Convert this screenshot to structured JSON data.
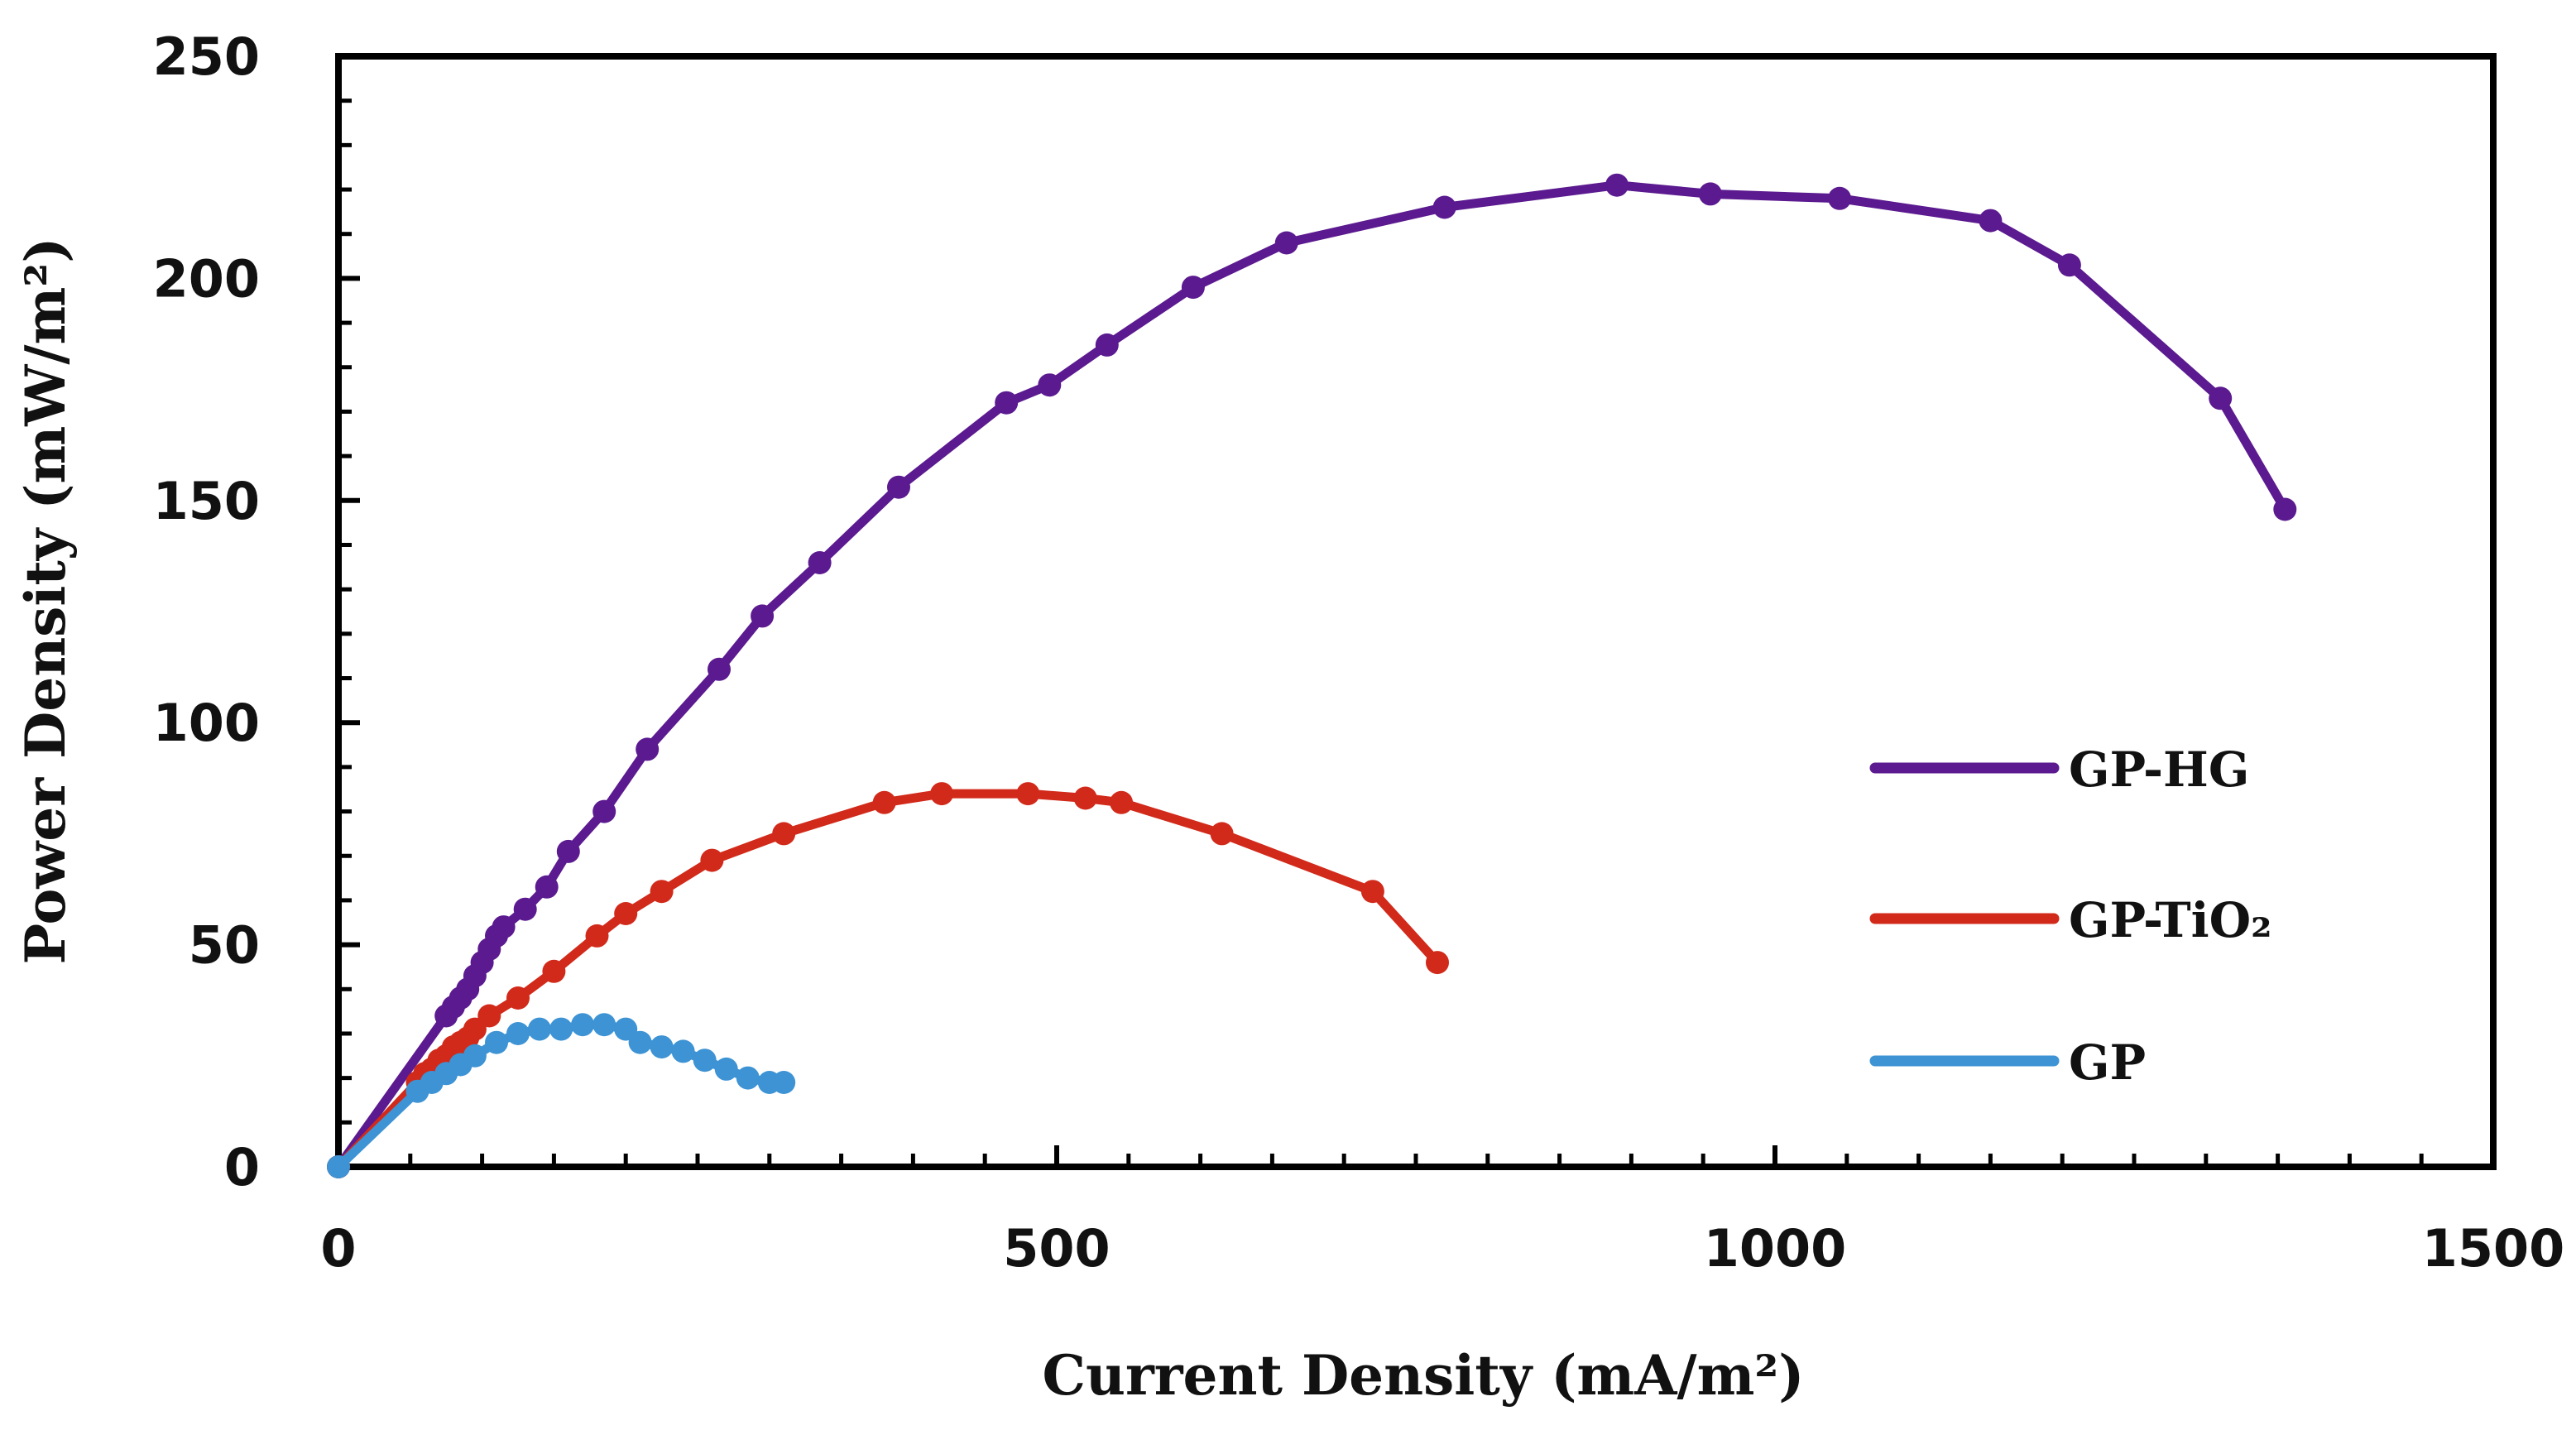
{
  "chart_data": {
    "type": "line",
    "xlabel": "Current Density (mA/m²)",
    "ylabel": "Power Density (mW/m²)",
    "xlim": [
      0,
      1500
    ],
    "ylim": [
      0,
      250
    ],
    "x_ticks": [
      "0",
      "500",
      "1000",
      "1500"
    ],
    "y_ticks": [
      "0",
      "50",
      "100",
      "150",
      "200",
      "250"
    ],
    "legend_position": "right",
    "grid": false,
    "series": [
      {
        "name": "GP-HG",
        "color": "#5b1a8f",
        "points": [
          [
            0,
            0
          ],
          [
            75,
            34
          ],
          [
            80,
            36
          ],
          [
            85,
            38
          ],
          [
            90,
            40
          ],
          [
            95,
            43
          ],
          [
            100,
            46
          ],
          [
            105,
            49
          ],
          [
            110,
            52
          ],
          [
            115,
            54
          ],
          [
            130,
            58
          ],
          [
            145,
            63
          ],
          [
            160,
            71
          ],
          [
            185,
            80
          ],
          [
            215,
            94
          ],
          [
            265,
            112
          ],
          [
            295,
            124
          ],
          [
            335,
            136
          ],
          [
            390,
            153
          ],
          [
            465,
            172
          ],
          [
            495,
            176
          ],
          [
            535,
            185
          ],
          [
            595,
            198
          ],
          [
            660,
            208
          ],
          [
            770,
            216
          ],
          [
            890,
            221
          ],
          [
            955,
            219
          ],
          [
            1045,
            218
          ],
          [
            1150,
            213
          ],
          [
            1205,
            203
          ],
          [
            1310,
            173
          ],
          [
            1355,
            148
          ]
        ]
      },
      {
        "name": "GP-TiO₂",
        "color": "#d12a1a",
        "points": [
          [
            0,
            0
          ],
          [
            55,
            19
          ],
          [
            60,
            21
          ],
          [
            65,
            22
          ],
          [
            70,
            24
          ],
          [
            75,
            25
          ],
          [
            80,
            27
          ],
          [
            85,
            28
          ],
          [
            90,
            29
          ],
          [
            95,
            31
          ],
          [
            105,
            34
          ],
          [
            125,
            38
          ],
          [
            150,
            44
          ],
          [
            180,
            52
          ],
          [
            200,
            57
          ],
          [
            225,
            62
          ],
          [
            260,
            69
          ],
          [
            310,
            75
          ],
          [
            380,
            82
          ],
          [
            420,
            84
          ],
          [
            480,
            84
          ],
          [
            520,
            83
          ],
          [
            545,
            82
          ],
          [
            615,
            75
          ],
          [
            720,
            62
          ],
          [
            765,
            46
          ]
        ]
      },
      {
        "name": "GP",
        "color": "#3d93d4",
        "points": [
          [
            0,
            0
          ],
          [
            55,
            17
          ],
          [
            65,
            19
          ],
          [
            75,
            21
          ],
          [
            85,
            23
          ],
          [
            95,
            25
          ],
          [
            110,
            28
          ],
          [
            125,
            30
          ],
          [
            140,
            31
          ],
          [
            155,
            31
          ],
          [
            170,
            32
          ],
          [
            185,
            32
          ],
          [
            200,
            31
          ],
          [
            210,
            28
          ],
          [
            225,
            27
          ],
          [
            240,
            26
          ],
          [
            255,
            24
          ],
          [
            270,
            22
          ],
          [
            285,
            20
          ],
          [
            300,
            19
          ],
          [
            310,
            19
          ]
        ]
      }
    ]
  }
}
